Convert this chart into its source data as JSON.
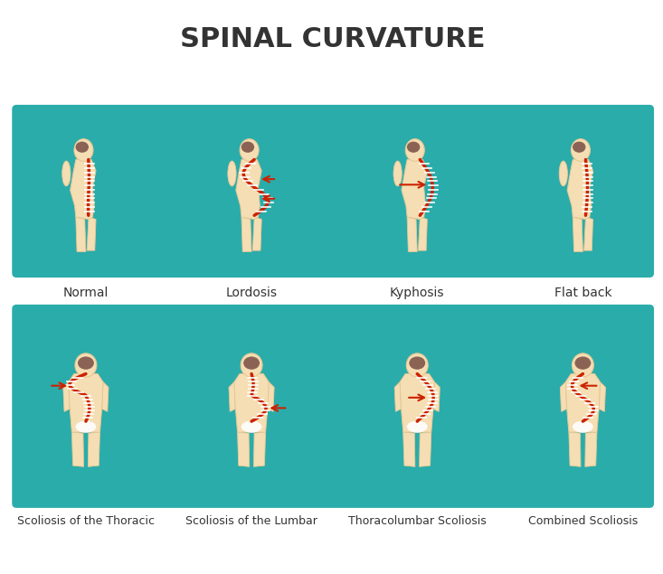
{
  "title": "SPINAL CURVATURE",
  "title_fontsize": 22,
  "title_color": "#333333",
  "bg_color": "#ffffff",
  "panel_color": "#2aacaa",
  "skin_color": "#f5deb3",
  "skin_outline": "#e8c896",
  "spine_color": "#cc2200",
  "vertebrae_color": "#ffffff",
  "hair_color": "#8B6355",
  "row1_labels": [
    "Normal",
    "Lordosis",
    "Kyphosis",
    "Flat back"
  ],
  "row2_labels": [
    "Scoliosis of the Thoracic",
    "Scoliosis of the Lumbar",
    "Thoracolumbar Scoliosis",
    "Combined Scoliosis"
  ],
  "label_fontsize": 9,
  "arrow_color": "#cc2200"
}
